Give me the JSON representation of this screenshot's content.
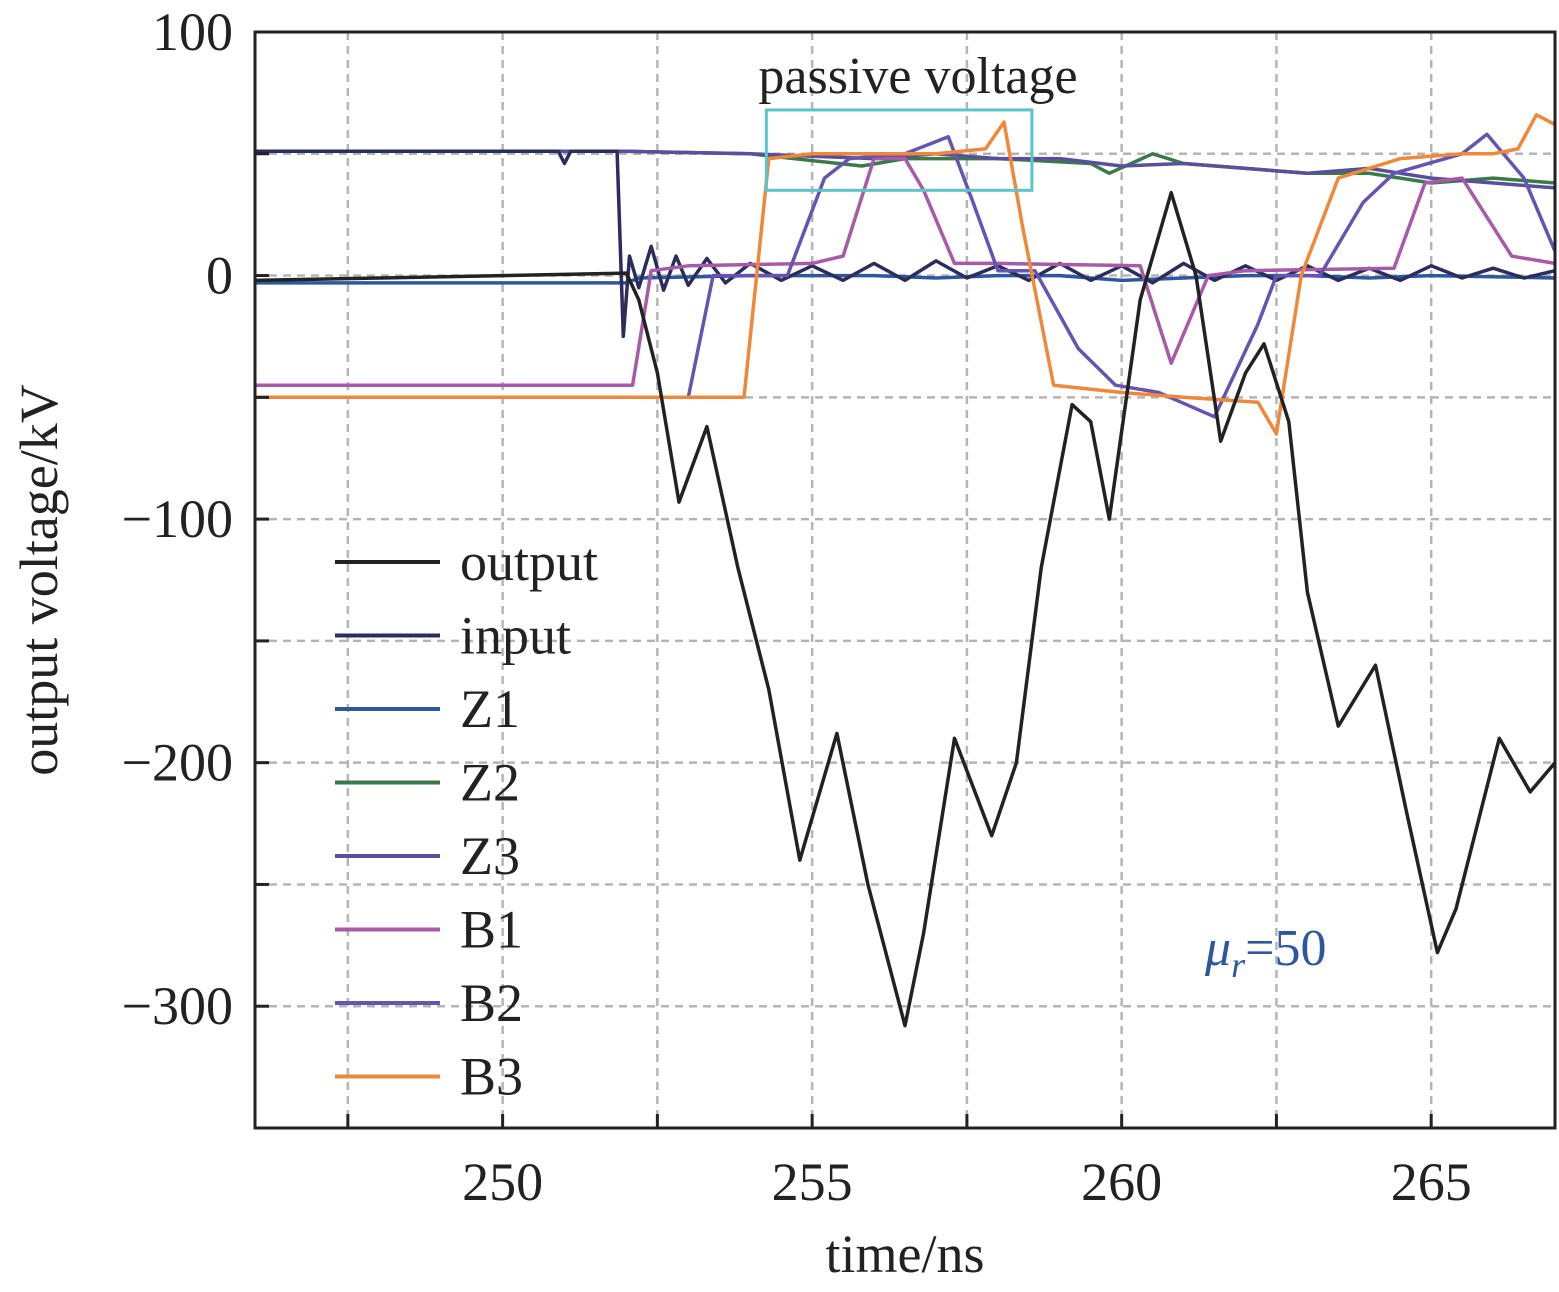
{
  "chart_data": {
    "type": "line",
    "title": "",
    "xlabel": "time/ns",
    "ylabel": "output voltage/kV",
    "xlim": [
      246,
      267
    ],
    "ylim": [
      -350,
      100
    ],
    "xticks": [
      250,
      255,
      260,
      265
    ],
    "yticks": [
      100,
      0,
      -100,
      -200,
      -300
    ],
    "xgrid_step": 2.5,
    "ygrid_step": 50,
    "grid": true,
    "legend_placement": "left",
    "annotations": [
      {
        "text": "passive voltage",
        "box": {
          "x": [
            254.26,
            258.55
          ],
          "y": [
            35,
            68
          ]
        },
        "color": "#5bc4c9"
      },
      {
        "text_italic": "μ",
        "subscript": "r",
        "text": "=50",
        "color": "#2e57a0"
      }
    ],
    "series": [
      {
        "name": "output",
        "color": "#222222",
        "points": [
          [
            246,
            -2
          ],
          [
            248,
            -1
          ],
          [
            250,
            0
          ],
          [
            252,
            1
          ],
          [
            252.2,
            -10
          ],
          [
            252.5,
            -40
          ],
          [
            252.85,
            -93
          ],
          [
            253.3,
            -62
          ],
          [
            253.8,
            -120
          ],
          [
            254.3,
            -170
          ],
          [
            254.8,
            -240
          ],
          [
            255.4,
            -188
          ],
          [
            255.9,
            -250
          ],
          [
            256.5,
            -308
          ],
          [
            256.8,
            -270
          ],
          [
            257.3,
            -190
          ],
          [
            257.9,
            -230
          ],
          [
            258.3,
            -200
          ],
          [
            258.7,
            -120
          ],
          [
            259.2,
            -53
          ],
          [
            259.5,
            -60
          ],
          [
            259.8,
            -100
          ],
          [
            260.3,
            -10
          ],
          [
            260.8,
            34
          ],
          [
            261.2,
            0
          ],
          [
            261.6,
            -68
          ],
          [
            262.0,
            -40
          ],
          [
            262.3,
            -28
          ],
          [
            262.7,
            -60
          ],
          [
            263.0,
            -130
          ],
          [
            263.5,
            -185
          ],
          [
            264.1,
            -160
          ],
          [
            264.6,
            -220
          ],
          [
            265.1,
            -278
          ],
          [
            265.4,
            -260
          ],
          [
            266.1,
            -190
          ],
          [
            266.6,
            -212
          ],
          [
            267,
            -200
          ]
        ]
      },
      {
        "name": "input",
        "color": "#2b2d5c",
        "points": [
          [
            246,
            51
          ],
          [
            250.9,
            51
          ],
          [
            251,
            46
          ],
          [
            251.1,
            51
          ],
          [
            251.85,
            51
          ],
          [
            251.95,
            -25
          ],
          [
            252.05,
            8
          ],
          [
            252.2,
            -5
          ],
          [
            252.4,
            12
          ],
          [
            252.6,
            -6
          ],
          [
            252.8,
            8
          ],
          [
            253,
            -4
          ],
          [
            253.3,
            7
          ],
          [
            253.6,
            -3
          ],
          [
            254,
            5
          ],
          [
            254.5,
            -2
          ],
          [
            255,
            4
          ],
          [
            255.5,
            -2
          ],
          [
            256,
            5
          ],
          [
            256.5,
            -2
          ],
          [
            257,
            6
          ],
          [
            257.5,
            -1
          ],
          [
            258,
            4
          ],
          [
            258.5,
            -2
          ],
          [
            259,
            5
          ],
          [
            259.5,
            -2
          ],
          [
            260,
            4
          ],
          [
            260.5,
            -3
          ],
          [
            261,
            5
          ],
          [
            261.5,
            -2
          ],
          [
            262,
            4
          ],
          [
            262.5,
            -2
          ],
          [
            263,
            4
          ],
          [
            263.5,
            -2
          ],
          [
            264,
            3
          ],
          [
            264.5,
            -2
          ],
          [
            265,
            4
          ],
          [
            265.5,
            -1
          ],
          [
            266,
            3
          ],
          [
            266.5,
            -1
          ],
          [
            267,
            2
          ]
        ]
      },
      {
        "name": "Z1",
        "color": "#2e57a0",
        "points": [
          [
            246,
            -3
          ],
          [
            252,
            -3
          ],
          [
            252.2,
            -1
          ],
          [
            254,
            0
          ],
          [
            256,
            0
          ],
          [
            257,
            -1
          ],
          [
            258,
            0
          ],
          [
            259,
            0
          ],
          [
            260,
            -2
          ],
          [
            261,
            -1
          ],
          [
            262,
            0
          ],
          [
            263,
            0
          ],
          [
            264,
            -1
          ],
          [
            265,
            0
          ],
          [
            267,
            -1
          ]
        ]
      },
      {
        "name": "Z2",
        "color": "#3a7a48",
        "points": [
          [
            246,
            51
          ],
          [
            252,
            51
          ],
          [
            254,
            50
          ],
          [
            255.8,
            45
          ],
          [
            256.5,
            48
          ],
          [
            258,
            48
          ],
          [
            259.5,
            46
          ],
          [
            259.8,
            42
          ],
          [
            260.5,
            50
          ],
          [
            261,
            46
          ],
          [
            262,
            44
          ],
          [
            263,
            42
          ],
          [
            264,
            42
          ],
          [
            265,
            38
          ],
          [
            266,
            40
          ],
          [
            267,
            38
          ]
        ]
      },
      {
        "name": "Z3",
        "color": "#5a4f9c",
        "points": [
          [
            246,
            51
          ],
          [
            252,
            51
          ],
          [
            254,
            50
          ],
          [
            256,
            48
          ],
          [
            257,
            50
          ],
          [
            258,
            48
          ],
          [
            259,
            48
          ],
          [
            260,
            45
          ],
          [
            261,
            46
          ],
          [
            262,
            44
          ],
          [
            263,
            42
          ],
          [
            264,
            44
          ],
          [
            265,
            40
          ],
          [
            266,
            38
          ],
          [
            267,
            36
          ]
        ]
      },
      {
        "name": "B1",
        "color": "#a65aa8",
        "points": [
          [
            246,
            -45
          ],
          [
            252.1,
            -45
          ],
          [
            252.4,
            2
          ],
          [
            253,
            4
          ],
          [
            255,
            5
          ],
          [
            255.5,
            8
          ],
          [
            256.0,
            48
          ],
          [
            256.5,
            48
          ],
          [
            256.8,
            35
          ],
          [
            257.3,
            5
          ],
          [
            258,
            5
          ],
          [
            260.3,
            4
          ],
          [
            260.8,
            -36
          ],
          [
            261.4,
            0
          ],
          [
            262,
            2
          ],
          [
            264.4,
            3
          ],
          [
            264.9,
            38
          ],
          [
            265.5,
            40
          ],
          [
            266.3,
            8
          ],
          [
            267,
            5
          ]
        ]
      },
      {
        "name": "B2",
        "color": "#6654b0",
        "points": [
          [
            246,
            -50
          ],
          [
            253.0,
            -50
          ],
          [
            253.4,
            0
          ],
          [
            254.6,
            0
          ],
          [
            255.2,
            40
          ],
          [
            255.6,
            48
          ],
          [
            256.5,
            50
          ],
          [
            257.2,
            57
          ],
          [
            257.6,
            30
          ],
          [
            258.0,
            2
          ],
          [
            258.6,
            2
          ],
          [
            259.3,
            -30
          ],
          [
            259.9,
            -45
          ],
          [
            260.6,
            -48
          ],
          [
            261.5,
            -58
          ],
          [
            262.2,
            -20
          ],
          [
            262.5,
            0
          ],
          [
            263.2,
            0
          ],
          [
            263.9,
            30
          ],
          [
            264.4,
            42
          ],
          [
            265.5,
            50
          ],
          [
            265.9,
            58
          ],
          [
            266.5,
            40
          ],
          [
            267,
            10
          ]
        ]
      },
      {
        "name": "B3",
        "color": "#f0883a",
        "points": [
          [
            246,
            -50
          ],
          [
            253.9,
            -50
          ],
          [
            254.3,
            48
          ],
          [
            255,
            50
          ],
          [
            256,
            50
          ],
          [
            257,
            50
          ],
          [
            257.8,
            52
          ],
          [
            258.1,
            63
          ],
          [
            258.4,
            20
          ],
          [
            258.9,
            -45
          ],
          [
            260,
            -48
          ],
          [
            261,
            -50
          ],
          [
            262.2,
            -52
          ],
          [
            262.5,
            -65
          ],
          [
            262.9,
            0
          ],
          [
            263.5,
            40
          ],
          [
            264.5,
            48
          ],
          [
            265.5,
            50
          ],
          [
            266,
            50
          ],
          [
            266.4,
            52
          ],
          [
            266.7,
            66
          ],
          [
            267,
            62
          ]
        ]
      }
    ]
  }
}
